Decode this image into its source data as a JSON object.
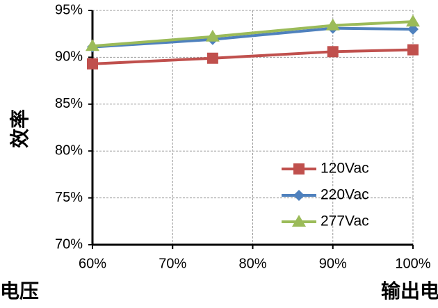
{
  "chart_data": {
    "type": "line",
    "y_label": "效率",
    "annotations": [
      "电压",
      "输出电"
    ],
    "x": [
      60,
      75,
      90,
      100
    ],
    "xlim": [
      60,
      100
    ],
    "xticks": [
      {
        "value": 60,
        "label": "60%"
      },
      {
        "value": 70,
        "label": "70%"
      },
      {
        "value": 80,
        "label": "80%"
      },
      {
        "value": 90,
        "label": "90%"
      },
      {
        "value": 100,
        "label": "100%"
      }
    ],
    "ylim": [
      70,
      95
    ],
    "yticks": [
      {
        "value": 70,
        "label": "70%"
      },
      {
        "value": 75,
        "label": "75%"
      },
      {
        "value": 80,
        "label": "80%"
      },
      {
        "value": 85,
        "label": "85%"
      },
      {
        "value": 90,
        "label": "90%"
      },
      {
        "value": 95,
        "label": "95%"
      }
    ],
    "grid": true,
    "legend": "lower right",
    "series": [
      {
        "name": "120Vac",
        "color": "#c0504d",
        "marker": "square",
        "values": [
          89.3,
          89.9,
          90.6,
          90.8
        ]
      },
      {
        "name": "220Vac",
        "color": "#4f81bd",
        "marker": "diamond",
        "values": [
          91.1,
          91.9,
          93.1,
          93.0
        ]
      },
      {
        "name": "277Vac",
        "color": "#9bbb59",
        "marker": "triangle",
        "values": [
          91.2,
          92.2,
          93.4,
          93.8
        ]
      }
    ]
  }
}
